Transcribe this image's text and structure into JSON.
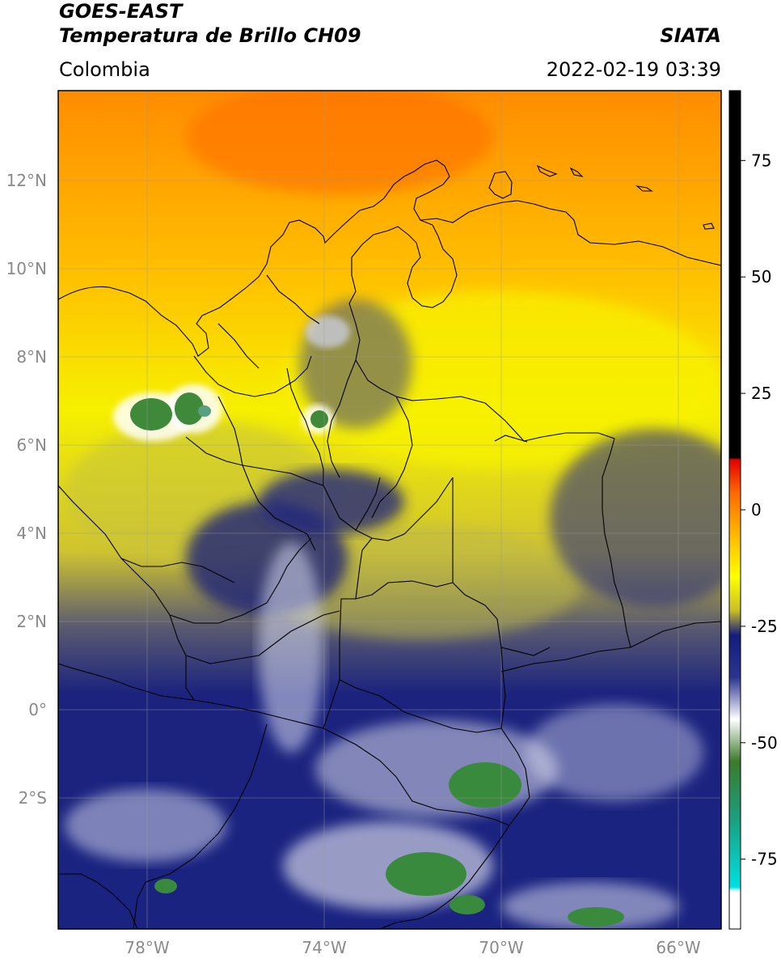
{
  "header": {
    "title_line1": "GOES-EAST",
    "title_line2": "Temperatura de Brillo CH09",
    "region": "Colombia",
    "agency": "SIATA",
    "datetime": "2022-02-19 03:39"
  },
  "map": {
    "lat_labels": [
      "12°N",
      "10°N",
      "8°N",
      "6°N",
      "4°N",
      "2°N",
      "0°",
      "2°S"
    ],
    "lon_labels": [
      "78°W",
      "74°W",
      "70°W",
      "66°W"
    ]
  },
  "colorbar": {
    "tick_labels": [
      "75",
      "50",
      "25",
      "0",
      "-25",
      "-50",
      "-75"
    ],
    "tick_values": [
      75,
      50,
      25,
      0,
      -25,
      -50,
      -75
    ],
    "vmin": -90,
    "vmax": 90
  }
}
